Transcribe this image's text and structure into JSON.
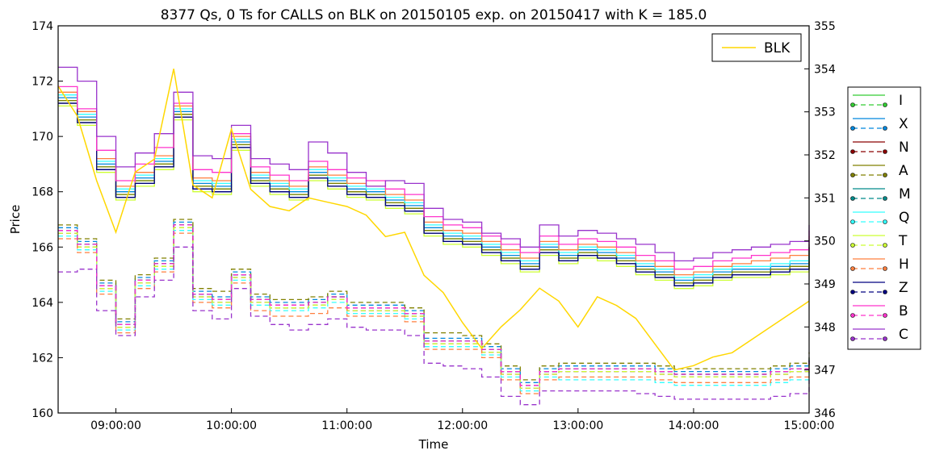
{
  "chart_data": {
    "type": "line",
    "title": "8377 Qs, 0 Ts for CALLS on BLK on 20150105 exp. on 20150417 with K = 185.0",
    "xlabel": "Time",
    "ylabel": "Price",
    "x_ticks": [
      "09:00:00",
      "10:00:00",
      "11:00:00",
      "12:00:00",
      "13:00:00",
      "14:00:00",
      "15:00:00"
    ],
    "xlim": [
      "08:30:00",
      "15:00:00"
    ],
    "ylim": [
      160,
      174
    ],
    "y_ticks": [
      "160",
      "162",
      "164",
      "166",
      "168",
      "170",
      "172",
      "174"
    ],
    "y2lim": [
      346,
      355
    ],
    "y2_ticks": [
      "346",
      "347",
      "348",
      "349",
      "350",
      "351",
      "352",
      "353",
      "354",
      "355"
    ],
    "grid": false,
    "underlying": {
      "name": "BLK",
      "color": "#FFD700",
      "axis": "right",
      "x": [
        "08:30",
        "08:40",
        "08:50",
        "09:00",
        "09:10",
        "09:20",
        "09:30",
        "09:40",
        "09:50",
        "10:00",
        "10:10",
        "10:20",
        "10:30",
        "10:40",
        "10:50",
        "11:00",
        "11:10",
        "11:20",
        "11:30",
        "11:40",
        "11:50",
        "12:00",
        "12:10",
        "12:20",
        "12:30",
        "12:40",
        "12:50",
        "13:00",
        "13:10",
        "13:20",
        "13:30",
        "13:40",
        "13:50",
        "14:00",
        "14:10",
        "14:20",
        "14:30",
        "14:40",
        "14:50",
        "15:00"
      ],
      "values": [
        353.6,
        352.9,
        351.4,
        350.2,
        351.6,
        351.9,
        354.0,
        351.3,
        351.0,
        352.6,
        351.2,
        350.8,
        350.7,
        351.0,
        350.9,
        350.8,
        350.6,
        350.1,
        350.2,
        349.2,
        348.8,
        348.1,
        347.5,
        348.0,
        348.4,
        348.9,
        348.6,
        348.0,
        348.7,
        348.5,
        348.2,
        347.6,
        347.0,
        347.1,
        347.3,
        347.4,
        347.7,
        348.0,
        348.3,
        348.6
      ]
    },
    "series": [
      {
        "name": "I",
        "color": "#33CC33",
        "style": "bid-ask",
        "ask": [
          171.3,
          170.6,
          168.9,
          167.9,
          168.4,
          169.0,
          170.8,
          168.2,
          168.1,
          169.7,
          168.4,
          168.1,
          167.9,
          168.6,
          168.3,
          168.0,
          167.9,
          167.6,
          167.4,
          166.6,
          166.3,
          166.2,
          165.9,
          165.6,
          165.3,
          165.9,
          165.6,
          165.8,
          165.7,
          165.5,
          165.2,
          165.0,
          164.7,
          164.8,
          165.0,
          165.1,
          165.1,
          165.2,
          165.3,
          166.1
        ],
        "bid": [
          166.6,
          166.1,
          164.6,
          163.2,
          164.8,
          165.4,
          166.8,
          164.3,
          164.1,
          165.0,
          164.1,
          163.9,
          163.9,
          164.0,
          164.2,
          163.8,
          163.8,
          163.8,
          163.6,
          162.6,
          162.6,
          162.6,
          162.3,
          161.5,
          161.0,
          161.5,
          161.6,
          161.6,
          161.6,
          161.6,
          161.6,
          161.5,
          161.4,
          161.4,
          161.4,
          161.4,
          161.4,
          161.5,
          161.6,
          162.0
        ]
      },
      {
        "name": "X",
        "color": "#0088DD",
        "style": "bid-ask",
        "ask": [
          171.4,
          170.7,
          169.0,
          168.0,
          168.5,
          169.1,
          170.9,
          168.3,
          168.2,
          169.8,
          168.5,
          168.2,
          168.0,
          168.7,
          168.4,
          168.1,
          168.0,
          167.7,
          167.5,
          166.7,
          166.4,
          166.3,
          166.0,
          165.7,
          165.4,
          166.0,
          165.7,
          165.9,
          165.8,
          165.6,
          165.3,
          165.1,
          164.8,
          164.9,
          165.1,
          165.2,
          165.2,
          165.3,
          165.4,
          166.2
        ],
        "bid": [
          166.7,
          166.2,
          164.7,
          163.3,
          164.9,
          165.5,
          166.9,
          164.4,
          164.2,
          165.1,
          164.2,
          164.0,
          164.0,
          164.1,
          164.3,
          163.9,
          163.9,
          163.9,
          163.7,
          162.7,
          162.7,
          162.7,
          162.4,
          161.6,
          161.1,
          161.6,
          161.7,
          161.7,
          161.7,
          161.7,
          161.7,
          161.6,
          161.5,
          161.5,
          161.5,
          161.5,
          161.5,
          161.6,
          161.7,
          162.1
        ]
      },
      {
        "name": "N",
        "color": "#8B0000",
        "style": "bid-ask",
        "ask": [
          171.2,
          170.5,
          168.8,
          167.8,
          168.3,
          168.9,
          170.7,
          168.1,
          168.0,
          169.6,
          168.3,
          168.0,
          167.8,
          168.5,
          168.2,
          167.9,
          167.8,
          167.5,
          167.3,
          166.5,
          166.2,
          166.1,
          165.8,
          165.5,
          165.2,
          165.8,
          165.5,
          165.7,
          165.6,
          165.4,
          165.1,
          164.9,
          164.6,
          164.7,
          164.9,
          165.0,
          165.0,
          165.1,
          165.2,
          166.0
        ],
        "bid": [
          166.5,
          166.0,
          164.5,
          163.1,
          164.7,
          165.3,
          166.7,
          164.2,
          164.0,
          164.9,
          164.0,
          163.8,
          163.8,
          163.9,
          164.1,
          163.7,
          163.7,
          163.7,
          163.5,
          162.5,
          162.5,
          162.5,
          162.2,
          161.4,
          160.9,
          161.4,
          161.5,
          161.5,
          161.5,
          161.5,
          161.5,
          161.4,
          161.3,
          161.3,
          161.3,
          161.3,
          161.3,
          161.4,
          161.5,
          161.9
        ]
      },
      {
        "name": "A",
        "color": "#808000",
        "style": "bid-ask",
        "ask": [
          171.3,
          170.6,
          168.9,
          167.9,
          168.4,
          169.0,
          170.8,
          168.2,
          168.1,
          169.7,
          168.4,
          168.1,
          167.9,
          168.6,
          168.3,
          168.0,
          167.9,
          167.6,
          167.4,
          166.6,
          166.3,
          166.2,
          165.9,
          165.6,
          165.3,
          165.9,
          165.6,
          165.8,
          165.7,
          165.5,
          165.2,
          165.0,
          164.7,
          164.8,
          165.0,
          165.1,
          165.1,
          165.2,
          165.3,
          166.1
        ],
        "bid": [
          166.8,
          166.3,
          164.8,
          163.4,
          165.0,
          165.6,
          167.0,
          164.5,
          164.4,
          165.2,
          164.3,
          164.1,
          164.1,
          164.2,
          164.4,
          164.0,
          164.0,
          164.0,
          163.8,
          162.9,
          162.9,
          162.8,
          162.5,
          161.7,
          161.2,
          161.7,
          161.8,
          161.8,
          161.8,
          161.8,
          161.8,
          161.7,
          161.6,
          161.6,
          161.6,
          161.6,
          161.6,
          161.7,
          161.8,
          162.2
        ]
      },
      {
        "name": "M",
        "color": "#008B8B",
        "style": "bid-ask",
        "ask": [
          171.2,
          170.5,
          168.8,
          167.8,
          168.3,
          168.9,
          170.7,
          168.1,
          168.0,
          169.6,
          168.3,
          168.0,
          167.8,
          168.5,
          168.2,
          167.9,
          167.8,
          167.5,
          167.3,
          166.5,
          166.2,
          166.1,
          165.8,
          165.5,
          165.2,
          165.8,
          165.5,
          165.7,
          165.6,
          165.4,
          165.1,
          164.9,
          164.6,
          164.7,
          164.9,
          165.0,
          165.0,
          165.1,
          165.2,
          166.0
        ],
        "bid": [
          166.6,
          166.1,
          164.6,
          163.2,
          164.8,
          165.4,
          166.8,
          164.3,
          164.1,
          165.0,
          164.1,
          163.9,
          163.9,
          164.0,
          164.2,
          163.8,
          163.8,
          163.8,
          163.6,
          162.6,
          162.6,
          162.6,
          162.3,
          161.5,
          161.0,
          161.5,
          161.6,
          161.6,
          161.6,
          161.6,
          161.6,
          161.5,
          161.4,
          161.4,
          161.4,
          161.4,
          161.4,
          161.5,
          161.6,
          162.0
        ]
      },
      {
        "name": "Q",
        "color": "#33FFFF",
        "style": "bid-ask",
        "ask": [
          171.5,
          170.8,
          169.1,
          168.1,
          168.6,
          169.2,
          171.0,
          168.4,
          168.3,
          169.9,
          168.6,
          168.3,
          168.1,
          168.8,
          168.5,
          168.2,
          168.1,
          167.8,
          167.6,
          166.8,
          166.5,
          166.4,
          166.1,
          165.8,
          165.5,
          166.1,
          165.8,
          166.0,
          165.9,
          165.7,
          165.4,
          165.2,
          164.9,
          165.0,
          165.2,
          165.3,
          165.3,
          165.4,
          165.5,
          166.3
        ],
        "bid": [
          166.4,
          165.9,
          164.4,
          163.0,
          164.6,
          165.2,
          166.6,
          164.1,
          163.9,
          164.8,
          163.9,
          163.7,
          163.7,
          163.8,
          164.0,
          163.6,
          163.6,
          163.6,
          163.4,
          162.4,
          162.4,
          162.4,
          162.1,
          161.3,
          160.8,
          161.3,
          161.2,
          161.2,
          161.2,
          161.2,
          161.2,
          161.1,
          161.0,
          161.0,
          161.0,
          161.0,
          161.0,
          161.1,
          161.2,
          161.6
        ]
      },
      {
        "name": "T",
        "color": "#CCFF33",
        "style": "bid-ask",
        "ask": [
          171.1,
          170.4,
          168.7,
          167.7,
          168.2,
          168.8,
          170.6,
          168.0,
          167.9,
          169.5,
          168.2,
          167.9,
          167.7,
          168.4,
          168.1,
          167.8,
          167.7,
          167.4,
          167.2,
          166.4,
          166.1,
          166.0,
          165.7,
          165.4,
          165.1,
          165.7,
          165.4,
          165.6,
          165.5,
          165.3,
          165.0,
          164.8,
          164.5,
          164.6,
          164.8,
          164.9,
          164.9,
          165.0,
          165.1,
          165.9
        ],
        "bid": [
          166.5,
          166.0,
          164.5,
          163.1,
          164.7,
          165.3,
          166.7,
          164.2,
          164.0,
          164.9,
          164.0,
          163.8,
          163.8,
          163.9,
          164.1,
          163.7,
          163.7,
          163.7,
          163.5,
          162.5,
          162.5,
          162.5,
          162.2,
          161.4,
          160.9,
          161.4,
          161.5,
          161.5,
          161.5,
          161.5,
          161.5,
          161.4,
          161.3,
          161.3,
          161.3,
          161.3,
          161.3,
          161.4,
          161.5,
          161.9
        ]
      },
      {
        "name": "H",
        "color": "#FF7F3F",
        "style": "bid-ask",
        "ask": [
          171.6,
          170.9,
          169.2,
          168.2,
          168.7,
          169.3,
          171.1,
          168.5,
          168.4,
          170.0,
          168.7,
          168.4,
          168.2,
          168.9,
          168.6,
          168.3,
          168.2,
          167.9,
          167.7,
          166.9,
          166.6,
          166.5,
          166.2,
          165.9,
          165.6,
          166.2,
          165.9,
          166.1,
          166.0,
          165.8,
          165.5,
          165.3,
          165.0,
          165.1,
          165.3,
          165.4,
          165.5,
          165.6,
          165.7,
          166.4
        ],
        "bid": [
          166.3,
          165.8,
          164.3,
          162.9,
          164.5,
          165.1,
          166.5,
          164.0,
          163.8,
          164.7,
          163.7,
          163.5,
          163.5,
          163.6,
          163.8,
          163.5,
          163.5,
          163.5,
          163.3,
          162.3,
          162.3,
          162.3,
          162.0,
          161.2,
          160.7,
          161.2,
          161.3,
          161.3,
          161.3,
          161.3,
          161.3,
          161.2,
          161.1,
          161.1,
          161.1,
          161.1,
          161.1,
          161.2,
          161.3,
          161.7
        ]
      },
      {
        "name": "Z",
        "color": "#000080",
        "style": "bid-ask",
        "ask": [
          171.2,
          170.5,
          168.8,
          167.8,
          168.3,
          168.9,
          170.7,
          168.1,
          168.0,
          169.6,
          168.3,
          168.0,
          167.8,
          168.5,
          168.2,
          167.9,
          167.8,
          167.5,
          167.3,
          166.5,
          166.2,
          166.1,
          165.8,
          165.5,
          165.2,
          165.8,
          165.5,
          165.7,
          165.6,
          165.4,
          165.1,
          164.9,
          164.6,
          164.7,
          164.9,
          165.0,
          165.0,
          165.1,
          165.2,
          166.0
        ],
        "bid": [
          166.6,
          166.1,
          164.6,
          163.2,
          164.8,
          165.4,
          166.8,
          164.3,
          164.1,
          165.0,
          164.1,
          163.9,
          163.9,
          164.0,
          164.2,
          163.8,
          163.8,
          163.8,
          163.6,
          162.6,
          162.6,
          162.6,
          162.3,
          161.5,
          161.0,
          161.5,
          161.6,
          161.6,
          161.6,
          161.6,
          161.6,
          161.5,
          161.4,
          161.4,
          161.4,
          161.4,
          161.4,
          161.5,
          161.6,
          162.0
        ]
      },
      {
        "name": "B",
        "color": "#FF33CC",
        "style": "bid-ask",
        "ask": [
          171.8,
          171.0,
          169.5,
          168.4,
          169.0,
          169.6,
          171.2,
          168.8,
          168.7,
          170.1,
          168.9,
          168.6,
          168.4,
          169.1,
          168.8,
          168.5,
          168.4,
          168.1,
          167.9,
          167.1,
          166.8,
          166.7,
          166.4,
          166.1,
          165.8,
          166.4,
          166.1,
          166.3,
          166.2,
          166.0,
          165.7,
          165.5,
          165.2,
          165.3,
          165.5,
          165.6,
          165.7,
          165.8,
          165.9,
          166.6
        ],
        "bid": [
          166.6,
          166.1,
          164.6,
          163.2,
          164.8,
          165.4,
          166.8,
          164.3,
          164.1,
          165.0,
          164.1,
          163.9,
          163.9,
          164.0,
          164.2,
          163.8,
          163.8,
          163.8,
          163.6,
          162.6,
          162.6,
          162.6,
          162.3,
          161.5,
          161.0,
          161.5,
          161.6,
          161.6,
          161.6,
          161.6,
          161.6,
          161.5,
          161.4,
          161.4,
          161.4,
          161.4,
          161.4,
          161.5,
          161.6,
          162.0
        ]
      },
      {
        "name": "C",
        "color": "#9933CC",
        "style": "bid-ask",
        "ask": [
          172.5,
          172.0,
          170.0,
          168.9,
          169.4,
          170.1,
          171.6,
          169.3,
          169.2,
          170.4,
          169.2,
          169.0,
          168.8,
          169.8,
          169.4,
          168.7,
          168.2,
          168.4,
          168.3,
          167.4,
          167.0,
          166.9,
          166.5,
          166.3,
          166.0,
          166.8,
          166.4,
          166.6,
          166.5,
          166.3,
          166.1,
          165.8,
          165.5,
          165.6,
          165.8,
          165.9,
          166.0,
          166.1,
          166.2,
          166.8
        ],
        "bid": [
          165.1,
          165.2,
          163.7,
          162.8,
          164.2,
          164.8,
          166.0,
          163.7,
          163.4,
          164.5,
          163.5,
          163.2,
          163.0,
          163.2,
          163.4,
          163.1,
          163.0,
          163.0,
          162.8,
          161.8,
          161.7,
          161.6,
          161.3,
          160.6,
          160.3,
          160.8,
          160.8,
          160.8,
          160.8,
          160.8,
          160.7,
          160.6,
          160.5,
          160.5,
          160.5,
          160.5,
          160.5,
          160.6,
          160.7,
          161.2
        ]
      }
    ],
    "legend_top": {
      "placement": "top-right",
      "entries": [
        "BLK"
      ]
    },
    "legend_side": {
      "placement": "right-outside",
      "entries": [
        "I",
        "X",
        "N",
        "A",
        "M",
        "Q",
        "T",
        "H",
        "Z",
        "B",
        "C"
      ]
    }
  }
}
